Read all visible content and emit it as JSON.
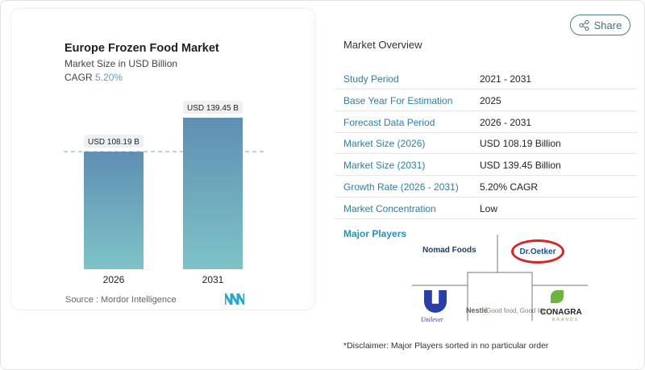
{
  "chart_data": {
    "type": "bar",
    "title": "Europe Frozen Food Market",
    "subtitle": "Market Size in USD Billion",
    "cagr_label": "CAGR",
    "cagr_value": "5.20%",
    "categories": [
      "2026",
      "2031"
    ],
    "values": [
      108.19,
      139.45
    ],
    "data_labels": [
      "USD 108.19 B",
      "USD 139.45 B"
    ],
    "ylim": [
      0,
      139.45
    ],
    "grid": false,
    "bar_color_top": "#5f8fb3",
    "bar_color_bottom": "#7ec3c6",
    "source": "Source :  Mordor Intelligence"
  },
  "share": {
    "label": "Share",
    "icon": "share-icon"
  },
  "overview": {
    "title": "Market Overview",
    "rows": [
      {
        "label": "Study Period",
        "value": "2021 - 2031"
      },
      {
        "label": "Base Year For Estimation",
        "value": "2025"
      },
      {
        "label": "Forecast Data Period",
        "value": "2026 - 2031"
      },
      {
        "label": "Market Size (2026)",
        "value": "USD 108.19 Billion"
      },
      {
        "label": "Market Size (2031)",
        "value": "USD 139.45 Billion"
      },
      {
        "label": "Growth Rate (2026 - 2031)",
        "value": "5.20% CAGR"
      },
      {
        "label": "Market Concentration",
        "value": "Low"
      }
    ]
  },
  "players": {
    "title": "Major Players",
    "names": [
      "Nomad Foods",
      "Dr.Oetker",
      "Unilever",
      "Nestlé",
      "Good food, Good life",
      "CONAGRA",
      "BRANDS"
    ],
    "disclaimer": "*Disclaimer: Major Players sorted in no particular order"
  }
}
